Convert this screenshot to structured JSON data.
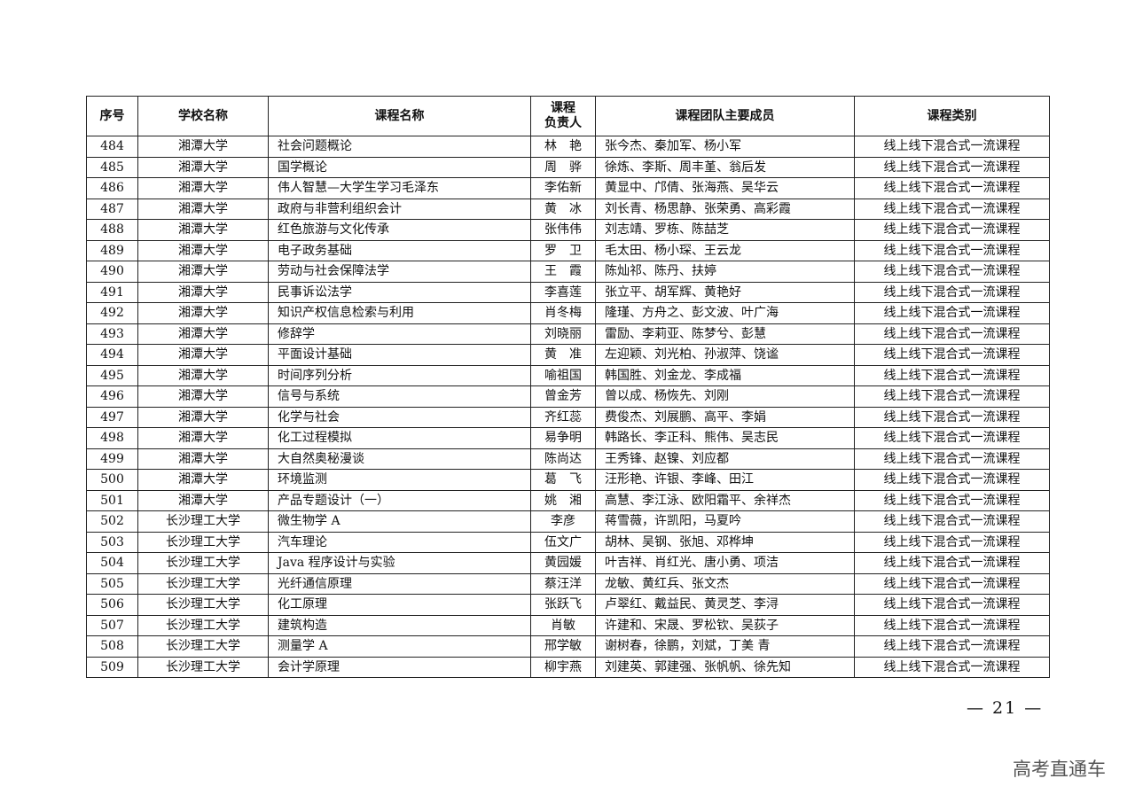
{
  "table": {
    "headers": [
      "序号",
      "学校名称",
      "课程名称",
      "课程\n负责人",
      "课程团队主要成员",
      "课程类别"
    ],
    "rows": [
      [
        "484",
        "湘潭大学",
        "社会问题概论",
        "林　艳",
        "张今杰、秦加军、杨小军",
        "线上线下混合式一流课程"
      ],
      [
        "485",
        "湘潭大学",
        "国学概论",
        "周　骅",
        "徐炼、李斯、周丰堇、翁后发",
        "线上线下混合式一流课程"
      ],
      [
        "486",
        "湘潭大学",
        "伟人智慧—大学生学习毛泽东",
        "李佑新",
        "黄显中、邝倩、张海燕、吴华云",
        "线上线下混合式一流课程"
      ],
      [
        "487",
        "湘潭大学",
        "政府与非营利组织会计",
        "黄　冰",
        "刘长青、杨思静、张荣勇、高彩霞",
        "线上线下混合式一流课程"
      ],
      [
        "488",
        "湘潭大学",
        "红色旅游与文化传承",
        "张伟伟",
        "刘志靖、罗栋、陈喆芝",
        "线上线下混合式一流课程"
      ],
      [
        "489",
        "湘潭大学",
        "电子政务基础",
        "罗　卫",
        "毛太田、杨小琛、王云龙",
        "线上线下混合式一流课程"
      ],
      [
        "490",
        "湘潭大学",
        "劳动与社会保障法学",
        "王　霞",
        "陈灿祁、陈丹、扶婷",
        "线上线下混合式一流课程"
      ],
      [
        "491",
        "湘潭大学",
        "民事诉讼法学",
        "李喜莲",
        "张立平、胡军辉、黄艳好",
        "线上线下混合式一流课程"
      ],
      [
        "492",
        "湘潭大学",
        "知识产权信息检索与利用",
        "肖冬梅",
        "隆瑾、方舟之、彭文波、叶广海",
        "线上线下混合式一流课程"
      ],
      [
        "493",
        "湘潭大学",
        "修辞学",
        "刘晓丽",
        "雷励、李莉亚、陈梦兮、彭慧",
        "线上线下混合式一流课程"
      ],
      [
        "494",
        "湘潭大学",
        "平面设计基础",
        "黄　准",
        "左迎颖、刘光柏、孙淑萍、饶谧",
        "线上线下混合式一流课程"
      ],
      [
        "495",
        "湘潭大学",
        "时间序列分析",
        "喻祖国",
        "韩国胜、刘金龙、李成福",
        "线上线下混合式一流课程"
      ],
      [
        "496",
        "湘潭大学",
        "信号与系统",
        "曾金芳",
        "曾以成、杨恢先、刘刚",
        "线上线下混合式一流课程"
      ],
      [
        "497",
        "湘潭大学",
        "化学与社会",
        "齐红蕊",
        "费俊杰、刘展鹏、高平、李娟",
        "线上线下混合式一流课程"
      ],
      [
        "498",
        "湘潭大学",
        "化工过程模拟",
        "易争明",
        "韩路长、李正科、熊伟、吴志民",
        "线上线下混合式一流课程"
      ],
      [
        "499",
        "湘潭大学",
        "大自然奥秘漫谈",
        "陈尚达",
        "王秀锋、赵镍、刘应都",
        "线上线下混合式一流课程"
      ],
      [
        "500",
        "湘潭大学",
        "环境监测",
        "葛　飞",
        "汪形艳、许银、李峰、田江",
        "线上线下混合式一流课程"
      ],
      [
        "501",
        "湘潭大学",
        "产品专题设计（一）",
        "姚　湘",
        "高慧、李江泳、欧阳霜平、余祥杰",
        "线上线下混合式一流课程"
      ],
      [
        "502",
        "长沙理工大学",
        "微生物学 A",
        "李彦",
        "蒋雪薇，许凯阳，马夏吟",
        "线上线下混合式一流课程"
      ],
      [
        "503",
        "长沙理工大学",
        "汽车理论",
        "伍文广",
        "胡林、吴钢、张旭、邓桦坤",
        "线上线下混合式一流课程"
      ],
      [
        "504",
        "长沙理工大学",
        "Java 程序设计与实验",
        "黄园媛",
        "叶吉祥、肖红光、唐小勇、项洁",
        "线上线下混合式一流课程"
      ],
      [
        "505",
        "长沙理工大学",
        "光纤通信原理",
        "蔡汪洋",
        "龙敏、黄红兵、张文杰",
        "线上线下混合式一流课程"
      ],
      [
        "506",
        "长沙理工大学",
        "化工原理",
        "张跃飞",
        "卢翠红、戴益民、黄灵芝、李浔",
        "线上线下混合式一流课程"
      ],
      [
        "507",
        "长沙理工大学",
        "建筑构造",
        "肖敏",
        "许建和、宋晟、罗松钦、吴荻子",
        "线上线下混合式一流课程"
      ],
      [
        "508",
        "长沙理工大学",
        "测量学 A",
        "邢学敏",
        "谢树春，徐鹏，刘斌，丁美 青",
        "线上线下混合式一流课程"
      ],
      [
        "509",
        "长沙理工大学",
        "会计学原理",
        "柳宇燕",
        "刘建英、郭建强、张帆帆、徐先知",
        "线上线下混合式一流课程"
      ]
    ]
  },
  "footer": {
    "page_number": "— 21 —"
  },
  "watermark": "高考直通车"
}
